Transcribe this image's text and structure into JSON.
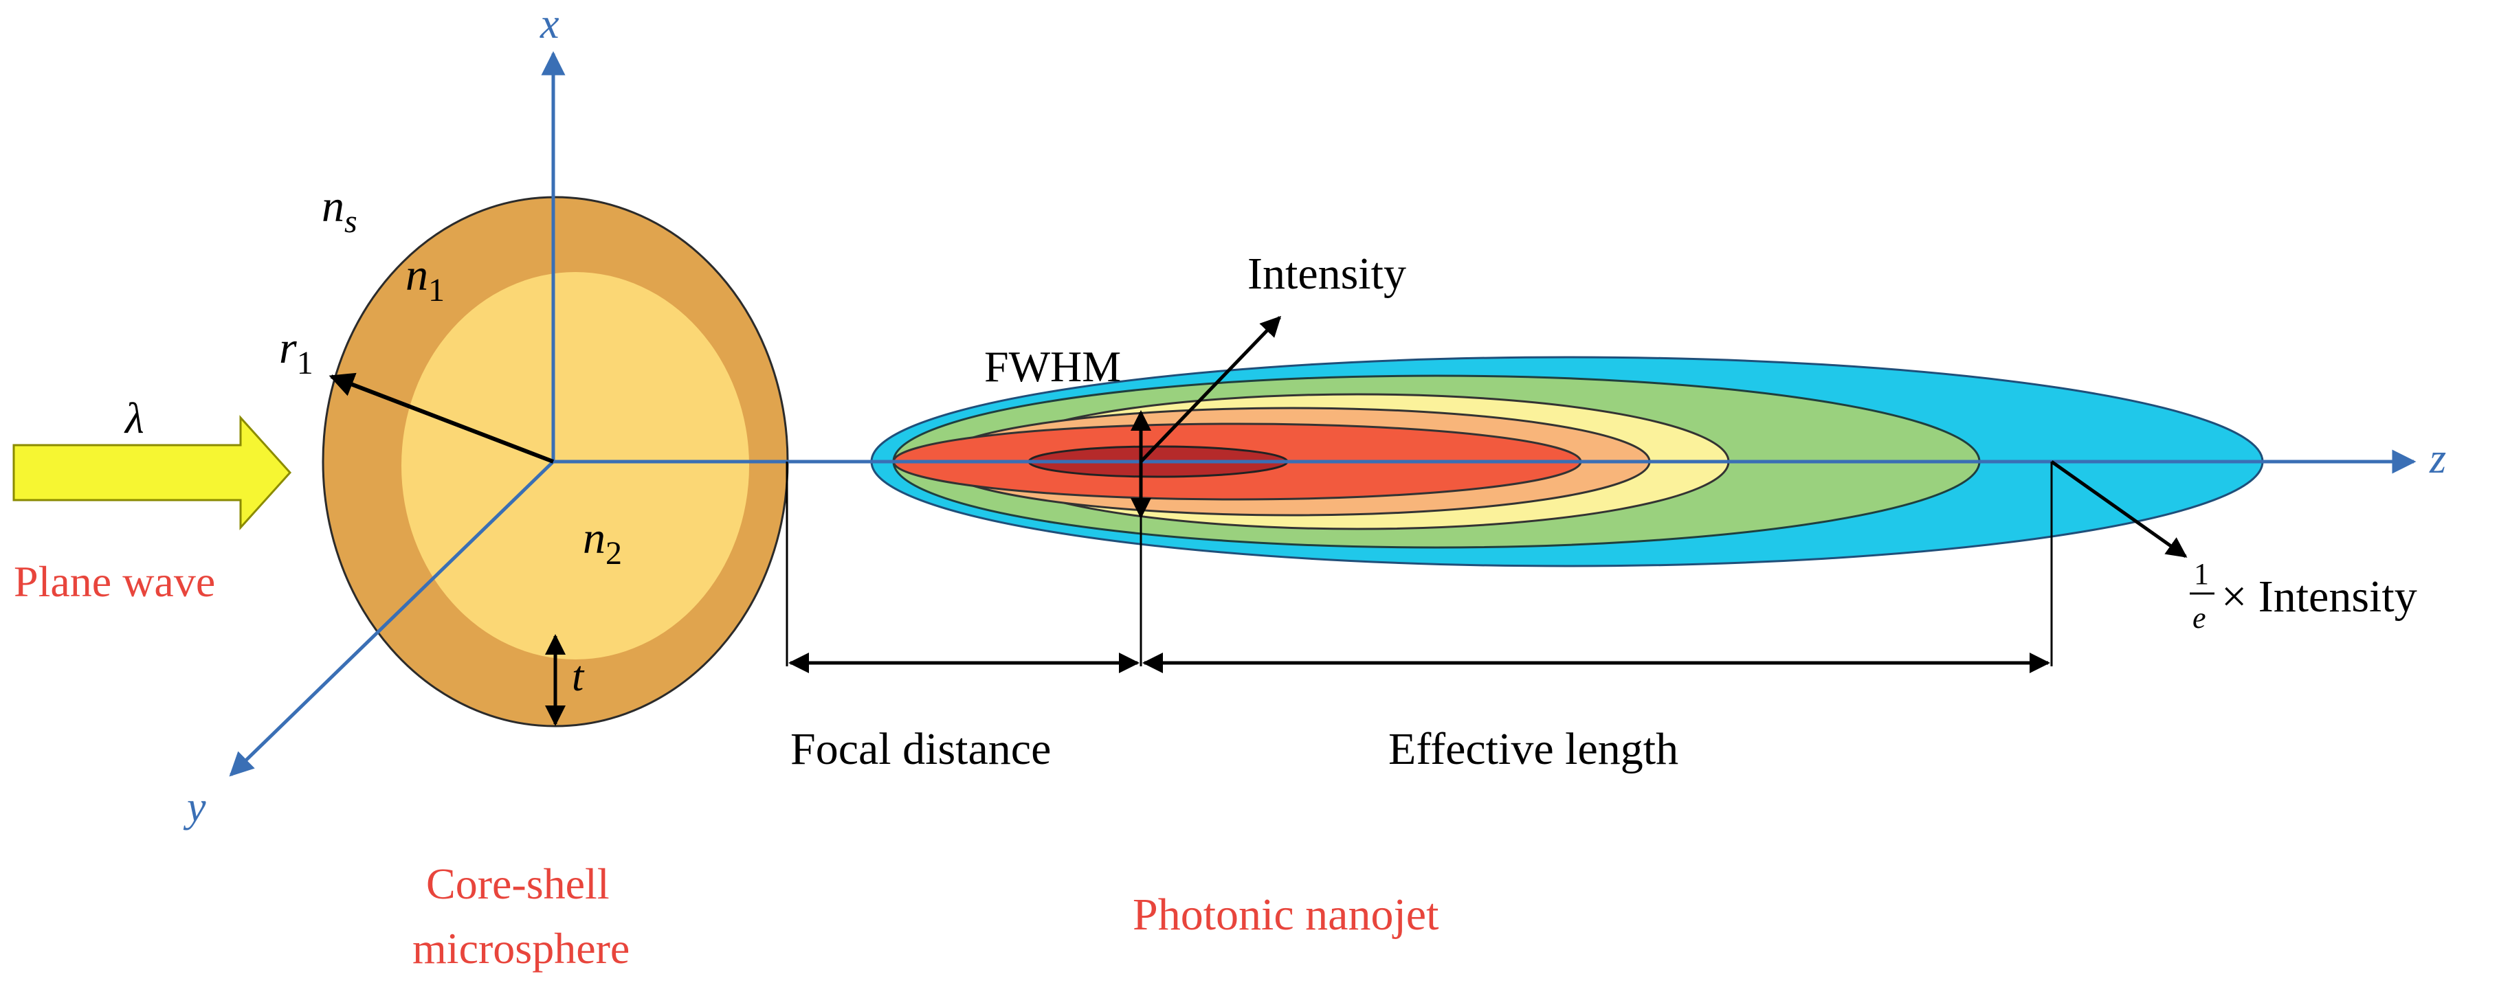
{
  "axes": {
    "x": "x",
    "y": "y",
    "z": "z"
  },
  "sphere": {
    "n_s_base": "n",
    "n_s_sub": "s",
    "n1_base": "n",
    "n1_sub": "1",
    "n2_base": "n",
    "n2_sub": "2",
    "r1_base": "r",
    "r1_sub": "1",
    "thickness": "t",
    "caption_line1": "Core-shell",
    "caption_line2": "microsphere"
  },
  "incident": {
    "wavelength": "λ",
    "label": "Plane wave"
  },
  "jet": {
    "intensity": "Intensity",
    "fwhm": "FWHM",
    "fraction_num": "1",
    "fraction_den": "e",
    "times_intensity": "× Intensity",
    "focal_distance": "Focal distance",
    "effective_length": "Effective length",
    "caption": "Photonic nanojet"
  },
  "colors": {
    "axis": "#3a6fb5",
    "label_red": "#e8453c",
    "shell": "#e0a44e",
    "core": "#fbd775",
    "arrow_fill": "#f6f632",
    "jet_cyan": "#20c8ea",
    "jet_green": "#9ad17e",
    "jet_yellow": "#fbf29b",
    "jet_orange": "#f8b57a",
    "jet_red": "#f25a3e",
    "jet_dark": "#b52a2a"
  }
}
